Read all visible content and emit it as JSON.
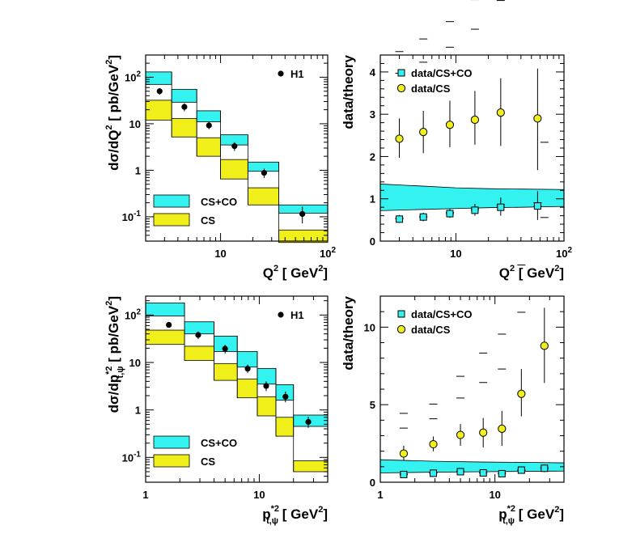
{
  "colors": {
    "co_band": "#33f2f0",
    "cs_band": "#f0ef1a",
    "marker": "#000000"
  },
  "chart_data": [
    {
      "id": "q2_xsec",
      "type": "step",
      "xscale": "log",
      "yscale": "log",
      "xlim": [
        2,
        100
      ],
      "ylim": [
        0.03,
        300
      ],
      "xticks": [
        {
          "v": 10,
          "base": "10",
          "exp": ""
        },
        {
          "v": 100,
          "base": "10",
          "exp": "2"
        }
      ],
      "yticks": [
        {
          "v": 0.1,
          "base": "10",
          "exp": "-1"
        },
        {
          "v": 1,
          "base": "1",
          "exp": ""
        },
        {
          "v": 10,
          "base": "10",
          "exp": ""
        },
        {
          "v": 100,
          "base": "10",
          "exp": "2"
        }
      ],
      "xlabel": {
        "main": "Q",
        "sup": "2",
        "rest": " [ GeV",
        "sup2": "2",
        "end": "]"
      },
      "ylabel": {
        "pre": "d",
        "sig": "σ",
        "mid": "/dQ",
        "sup": "2",
        "rest": " [ pb/GeV",
        "sup2": "2",
        "end": "]"
      },
      "bins": [
        [
          2,
          3.5
        ],
        [
          3.5,
          6
        ],
        [
          6,
          10
        ],
        [
          10,
          18
        ],
        [
          18,
          35
        ],
        [
          35,
          100
        ]
      ],
      "csco_band": [
        [
          70,
          130
        ],
        [
          29,
          55
        ],
        [
          11,
          19
        ],
        [
          3.5,
          5.8
        ],
        [
          0.95,
          1.5
        ],
        [
          0.12,
          0.18
        ]
      ],
      "cs_band": [
        [
          12,
          32
        ],
        [
          5.2,
          13
        ],
        [
          2,
          5
        ],
        [
          0.65,
          1.7
        ],
        [
          0.18,
          0.42
        ],
        [
          0.028,
          0.052
        ]
      ],
      "h1": {
        "label": "H1",
        "x": [
          2.7,
          4.6,
          7.8,
          13.5,
          25.5,
          58
        ],
        "y": [
          50,
          23,
          9.2,
          3.3,
          0.88,
          0.115
        ],
        "err_lo": [
          42,
          18.5,
          7.6,
          2.6,
          0.68,
          0.072
        ],
        "err_hi": [
          58,
          27.5,
          11,
          4.0,
          1.08,
          0.165
        ]
      },
      "legend": {
        "band1": "CS+CO",
        "band2": "CS",
        "point": "H1"
      }
    },
    {
      "id": "q2_ratio",
      "type": "ratio",
      "xscale": "log",
      "yscale": "linear",
      "xlim": [
        2,
        100
      ],
      "ylim": [
        0,
        4.4
      ],
      "xticks": [
        {
          "v": 10,
          "base": "10",
          "exp": ""
        },
        {
          "v": 100,
          "base": "10",
          "exp": "2"
        }
      ],
      "yticks": [
        {
          "v": 0,
          "base": "0",
          "exp": ""
        },
        {
          "v": 1,
          "base": "1",
          "exp": ""
        },
        {
          "v": 2,
          "base": "2",
          "exp": ""
        },
        {
          "v": 3,
          "base": "3",
          "exp": ""
        },
        {
          "v": 4,
          "base": "4",
          "exp": ""
        }
      ],
      "xlabel": {
        "main": "Q",
        "sup": "2",
        "rest": " [ GeV",
        "sup2": "2",
        "end": "]"
      },
      "ylabel_text": "data/theory",
      "band": {
        "x": [
          2,
          5,
          10,
          20,
          40,
          100
        ],
        "lo": [
          0.72,
          0.75,
          0.77,
          0.79,
          0.8,
          0.82
        ],
        "hi": [
          1.35,
          1.3,
          1.26,
          1.24,
          1.23,
          1.22
        ]
      },
      "series": [
        {
          "name": "data/CS+CO",
          "marker": "square",
          "x": [
            3,
            5,
            8.8,
            15,
            26,
            57
          ],
          "y": [
            0.52,
            0.57,
            0.65,
            0.73,
            0.8,
            0.83
          ],
          "err_lo": [
            0.43,
            0.47,
            0.55,
            0.6,
            0.6,
            0.5
          ],
          "err_hi": [
            0.62,
            0.67,
            0.76,
            0.88,
            1.03,
            1.18
          ],
          "ticks_y": [
            0.48,
            0.6
          ]
        },
        {
          "name": "data/CS",
          "marker": "circle",
          "x": [
            3,
            5,
            8.8,
            15,
            26,
            57
          ],
          "y": [
            2.42,
            2.58,
            2.75,
            2.87,
            3.04,
            2.9
          ],
          "err_lo": [
            1.97,
            2.08,
            2.22,
            2.28,
            2.25,
            1.68
          ],
          "err_hi": [
            2.9,
            3.08,
            3.32,
            3.55,
            3.85,
            4.08
          ],
          "ticks_y": [
            2.15,
            2.7
          ]
        }
      ]
    },
    {
      "id": "pt_xsec",
      "type": "step",
      "xscale": "log",
      "yscale": "log",
      "xlim": [
        1,
        40
      ],
      "ylim": [
        0.03,
        250
      ],
      "xticks": [
        {
          "v": 1,
          "base": "1",
          "exp": ""
        },
        {
          "v": 10,
          "base": "10",
          "exp": ""
        }
      ],
      "yticks": [
        {
          "v": 0.1,
          "base": "10",
          "exp": "-1"
        },
        {
          "v": 1,
          "base": "1",
          "exp": ""
        },
        {
          "v": 10,
          "base": "10",
          "exp": ""
        },
        {
          "v": 100,
          "base": "10",
          "exp": "2"
        }
      ],
      "xlabel": {
        "main": "p",
        "sup": "*2",
        "sub": "t,ψ",
        "rest": " [ GeV",
        "sup2": "2",
        "end": "]"
      },
      "ylabel": {
        "pre": "d",
        "sig": "σ",
        "mid": "/dp",
        "sup": "*2",
        "sub": "t,ψ",
        "rest": " [ pb/GeV",
        "sup2": "2",
        "end": "]"
      },
      "bins": [
        [
          1,
          2.2
        ],
        [
          2.2,
          4
        ],
        [
          4,
          6.4
        ],
        [
          6.4,
          9.6
        ],
        [
          9.6,
          14
        ],
        [
          14,
          20
        ],
        [
          20,
          40
        ]
      ],
      "csco_band": [
        [
          95,
          180
        ],
        [
          40,
          72
        ],
        [
          17,
          36
        ],
        [
          8,
          17
        ],
        [
          3.5,
          7.5
        ],
        [
          1.6,
          3.4
        ],
        [
          0.45,
          0.78
        ]
      ],
      "cs_band": [
        [
          24,
          48
        ],
        [
          11,
          22
        ],
        [
          4.2,
          9.5
        ],
        [
          1.8,
          4.5
        ],
        [
          0.75,
          1.9
        ],
        [
          0.28,
          0.7
        ],
        [
          0.05,
          0.085
        ]
      ],
      "h1": {
        "label": "H1",
        "x": [
          1.6,
          2.9,
          5,
          7.9,
          11.5,
          17,
          27
        ],
        "y": [
          62,
          38,
          19.5,
          7.4,
          3.2,
          1.9,
          0.56
        ],
        "err_lo": [
          54,
          31,
          15.5,
          6.0,
          2.5,
          1.45,
          0.42
        ],
        "err_hi": [
          70,
          45,
          23.5,
          9.0,
          4.0,
          2.45,
          0.72
        ]
      },
      "legend": {
        "band1": "CS+CO",
        "band2": "CS",
        "point": "H1"
      }
    },
    {
      "id": "pt_ratio",
      "type": "ratio",
      "xscale": "log",
      "yscale": "linear",
      "xlim": [
        1,
        40
      ],
      "ylim": [
        0,
        12
      ],
      "xticks": [
        {
          "v": 1,
          "base": "1",
          "exp": ""
        },
        {
          "v": 10,
          "base": "10",
          "exp": ""
        }
      ],
      "yticks": [
        {
          "v": 0,
          "base": "0",
          "exp": ""
        },
        {
          "v": 5,
          "base": "5",
          "exp": ""
        },
        {
          "v": 10,
          "base": "10",
          "exp": ""
        }
      ],
      "xlabel": {
        "main": "p",
        "sup": "*2",
        "sub": "t,ψ",
        "rest": " [ GeV",
        "sup2": "2",
        "end": "]"
      },
      "ylabel_text": "data/theory",
      "band": {
        "x": [
          1,
          3,
          8,
          20,
          40
        ],
        "lo": [
          0.6,
          0.65,
          0.68,
          0.7,
          0.72
        ],
        "hi": [
          1.45,
          1.35,
          1.3,
          1.28,
          1.25
        ]
      },
      "series": [
        {
          "name": "data/CS+CO",
          "marker": "square",
          "x": [
            1.6,
            2.9,
            5,
            7.9,
            11.5,
            17,
            27
          ],
          "y": [
            0.5,
            0.58,
            0.68,
            0.6,
            0.55,
            0.78,
            0.9
          ],
          "err_lo": [
            0.35,
            0.45,
            0.52,
            0.45,
            0.4,
            0.58,
            0.65
          ],
          "err_hi": [
            0.65,
            0.72,
            0.84,
            0.75,
            0.7,
            0.98,
            1.15
          ],
          "ticks_y": [
            0.45,
            0.6
          ]
        },
        {
          "name": "data/CS",
          "marker": "circle",
          "x": [
            1.6,
            2.9,
            5,
            7.9,
            11.5,
            17,
            27
          ],
          "y": [
            1.85,
            2.45,
            3.05,
            3.2,
            3.45,
            5.7,
            8.8
          ],
          "err_lo": [
            1.4,
            2.0,
            2.35,
            2.25,
            2.35,
            4.25,
            6.4
          ],
          "err_hi": [
            2.35,
            2.95,
            3.75,
            4.15,
            4.6,
            7.3,
            11.25
          ],
          "ticks_y": [
            2.2,
            3.2
          ]
        }
      ]
    }
  ]
}
